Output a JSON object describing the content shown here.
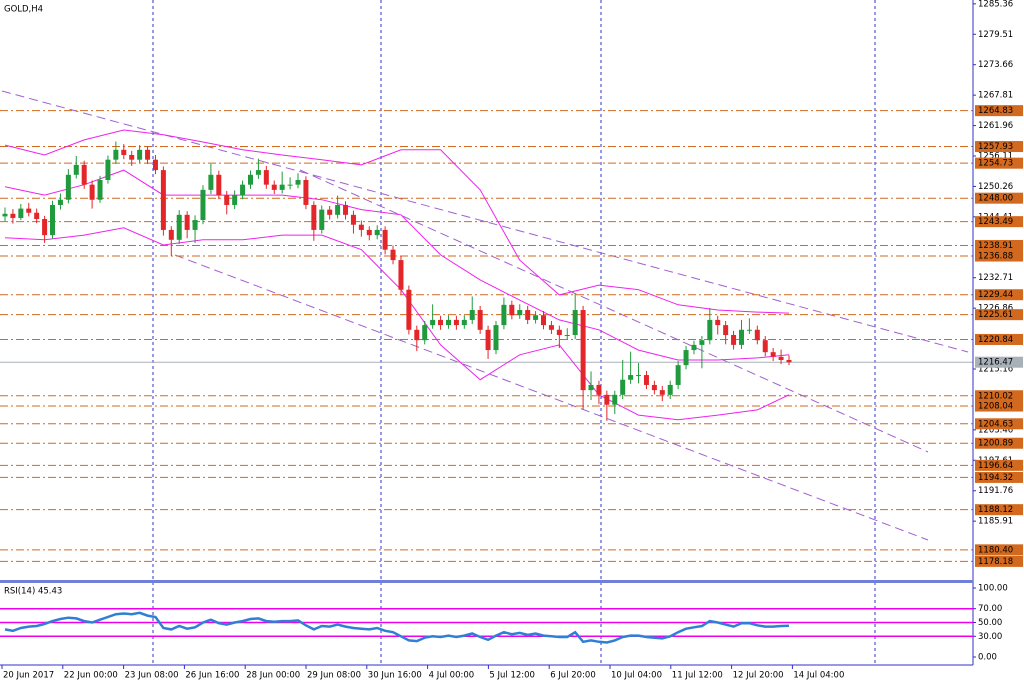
{
  "chart_data": {
    "type": "candlestick",
    "title": "GOLD,H4",
    "up_color": "#1f9a3c",
    "down_color": "#e3262a",
    "level_color": "#d2691e",
    "band_color": "#ee22ee",
    "ylim": [
      1174.6,
      1286.1
    ],
    "yticks": [
      1285.36,
      1279.51,
      1273.66,
      1267.81,
      1261.96,
      1256.11,
      1250.26,
      1244.41,
      1232.71,
      1226.86,
      1215.16,
      1203.46,
      1197.61,
      1191.76,
      1185.91
    ],
    "levels": [
      1264.83,
      1257.93,
      1254.73,
      {
        "value": 1248,
        "label": "1248.00"
      },
      1243.49,
      1238.91,
      1236.88,
      1229.44,
      1225.61,
      1220.84,
      1210.02,
      1208.04,
      1204.63,
      1200.89,
      1196.64,
      1194.32,
      1188.12,
      {
        "value": 1180.4,
        "label": "1180.40"
      },
      1178.18
    ],
    "last_price": 1216.47,
    "x_labels": [
      "20 Jun 2017",
      "22 Jun 00:00",
      "23 Jun 08:00",
      "26 Jun 16:00",
      "28 Jun 00:00",
      "29 Jun 08:00",
      "30 Jun 16:00",
      "4 Jul 00:00",
      "5 Jul 12:00",
      "6 Jul 20:00",
      "10 Jul 04:00",
      "11 Jul 12:00",
      "12 Jul 20:00",
      "14 Jul 04:00"
    ],
    "candles": [
      [
        1244.5,
        1246.2,
        1243.6,
        1245.0
      ],
      [
        1245.0,
        1245.9,
        1243.1,
        1244.2
      ],
      [
        1244.2,
        1246.9,
        1243.8,
        1246.0
      ],
      [
        1246.0,
        1247.1,
        1244.5,
        1245.2
      ],
      [
        1245.2,
        1246.0,
        1243.2,
        1244.0
      ],
      [
        1244.0,
        1244.6,
        1239.4,
        1240.9
      ],
      [
        1240.9,
        1247.5,
        1240.2,
        1246.7
      ],
      [
        1246.7,
        1248.9,
        1245.8,
        1247.7
      ],
      [
        1247.7,
        1253.6,
        1247.0,
        1252.5
      ],
      [
        1252.5,
        1256.1,
        1251.8,
        1254.4
      ],
      [
        1254.4,
        1255.2,
        1249.8,
        1250.6
      ],
      [
        1250.6,
        1251.4,
        1246.0,
        1247.7
      ],
      [
        1247.7,
        1252.3,
        1247.1,
        1251.5
      ],
      [
        1251.5,
        1256.2,
        1250.8,
        1255.4
      ],
      [
        1255.4,
        1258.9,
        1254.6,
        1257.3
      ],
      [
        1257.3,
        1258.4,
        1255.5,
        1256.3
      ],
      [
        1256.3,
        1257.1,
        1254.2,
        1255.4
      ],
      [
        1255.4,
        1258.2,
        1254.8,
        1257.3
      ],
      [
        1257.3,
        1258.0,
        1254.6,
        1255.4
      ],
      [
        1255.4,
        1256.3,
        1252.6,
        1253.4
      ],
      [
        1253.4,
        1254.1,
        1240.8,
        1241.9
      ],
      [
        1241.9,
        1242.6,
        1236.9,
        1240.0
      ],
      [
        1240.0,
        1245.7,
        1239.2,
        1244.8
      ],
      [
        1244.8,
        1245.5,
        1240.3,
        1241.9
      ],
      [
        1241.9,
        1244.7,
        1239.4,
        1243.8
      ],
      [
        1243.8,
        1250.5,
        1243.0,
        1249.6
      ],
      [
        1249.6,
        1254.6,
        1248.8,
        1252.5
      ],
      [
        1252.5,
        1253.3,
        1247.8,
        1248.6
      ],
      [
        1248.6,
        1249.4,
        1244.9,
        1246.7
      ],
      [
        1246.7,
        1249.5,
        1245.9,
        1248.6
      ],
      [
        1248.6,
        1251.4,
        1247.8,
        1250.6
      ],
      [
        1250.6,
        1253.3,
        1249.8,
        1252.5
      ],
      [
        1252.5,
        1255.6,
        1251.7,
        1253.4
      ],
      [
        1253.4,
        1254.2,
        1249.8,
        1250.6
      ],
      [
        1250.6,
        1251.4,
        1248.8,
        1249.6
      ],
      [
        1249.6,
        1253.1,
        1248.9,
        1250.6
      ],
      [
        1250.6,
        1252.0,
        1249.7,
        1250.6
      ],
      [
        1250.6,
        1252.8,
        1249.9,
        1251.5
      ],
      [
        1251.5,
        1252.2,
        1245.9,
        1246.7
      ],
      [
        1246.7,
        1247.4,
        1239.8,
        1241.9
      ],
      [
        1241.9,
        1246.6,
        1241.2,
        1245.8
      ],
      [
        1245.8,
        1246.5,
        1243.9,
        1244.8
      ],
      [
        1244.8,
        1248.5,
        1244.1,
        1246.7
      ],
      [
        1246.7,
        1247.4,
        1243.9,
        1244.8
      ],
      [
        1244.8,
        1245.6,
        1241.2,
        1242.9
      ],
      [
        1242.9,
        1243.7,
        1240.6,
        1241.9
      ],
      [
        1241.9,
        1242.6,
        1239.9,
        1240.9
      ],
      [
        1240.9,
        1242.8,
        1240.1,
        1241.9
      ],
      [
        1241.9,
        1242.6,
        1237.2,
        1238.1
      ],
      [
        1238.1,
        1238.9,
        1235.3,
        1236.1
      ],
      [
        1236.1,
        1236.9,
        1229.5,
        1230.4
      ],
      [
        1230.4,
        1231.2,
        1221.8,
        1222.7
      ],
      [
        1222.7,
        1223.5,
        1218.6,
        1220.7
      ],
      [
        1220.7,
        1224.4,
        1219.9,
        1223.6
      ],
      [
        1223.6,
        1227.6,
        1222.9,
        1224.6
      ],
      [
        1224.6,
        1225.4,
        1222.7,
        1223.6
      ],
      [
        1223.6,
        1225.5,
        1222.9,
        1224.6
      ],
      [
        1224.6,
        1225.4,
        1222.7,
        1223.6
      ],
      [
        1223.6,
        1225.5,
        1222.9,
        1224.6
      ],
      [
        1224.6,
        1229.1,
        1223.8,
        1226.5
      ],
      [
        1226.5,
        1227.3,
        1221.9,
        1222.7
      ],
      [
        1222.7,
        1223.5,
        1217.1,
        1218.8
      ],
      [
        1218.8,
        1224.4,
        1218.0,
        1223.6
      ],
      [
        1223.6,
        1228.9,
        1222.8,
        1227.5
      ],
      [
        1227.5,
        1228.3,
        1224.7,
        1225.5
      ],
      [
        1225.5,
        1227.6,
        1224.8,
        1226.5
      ],
      [
        1226.5,
        1227.3,
        1223.8,
        1224.6
      ],
      [
        1224.6,
        1226.3,
        1223.9,
        1225.5
      ],
      [
        1225.5,
        1226.3,
        1222.8,
        1223.6
      ],
      [
        1223.6,
        1224.4,
        1221.9,
        1222.7
      ],
      [
        1222.7,
        1223.5,
        1219.2,
        1221.7
      ],
      [
        1221.7,
        1223.0,
        1220.9,
        1221.7
      ],
      [
        1221.7,
        1229.6,
        1220.9,
        1226.5
      ],
      [
        1226.5,
        1227.3,
        1207.4,
        1211.1
      ],
      [
        1211.1,
        1214.7,
        1209.2,
        1212.1
      ],
      [
        1212.1,
        1212.9,
        1208.4,
        1210.2
      ],
      [
        1210.2,
        1211.0,
        1205.2,
        1208.3
      ],
      [
        1208.3,
        1211.0,
        1206.5,
        1210.2
      ],
      [
        1210.2,
        1216.9,
        1209.4,
        1213.1
      ],
      [
        1213.1,
        1218.5,
        1212.3,
        1214.0
      ],
      [
        1214.0,
        1216.3,
        1212.4,
        1214.0
      ],
      [
        1214.0,
        1214.8,
        1211.3,
        1212.1
      ],
      [
        1212.1,
        1212.9,
        1210.3,
        1211.1
      ],
      [
        1211.1,
        1211.9,
        1209.0,
        1210.2
      ],
      [
        1210.2,
        1212.9,
        1209.4,
        1212.1
      ],
      [
        1212.1,
        1216.7,
        1211.3,
        1215.9
      ],
      [
        1215.9,
        1219.6,
        1215.1,
        1218.8
      ],
      [
        1218.8,
        1220.6,
        1218.0,
        1219.8
      ],
      [
        1219.8,
        1221.5,
        1215.3,
        1220.7
      ],
      [
        1220.7,
        1226.9,
        1219.9,
        1224.6
      ],
      [
        1224.6,
        1225.4,
        1221.8,
        1223.6
      ],
      [
        1223.6,
        1224.4,
        1219.9,
        1221.7
      ],
      [
        1221.7,
        1222.5,
        1218.9,
        1219.8
      ],
      [
        1219.8,
        1224.6,
        1219.0,
        1222.7
      ],
      [
        1222.7,
        1224.9,
        1221.9,
        1222.7
      ],
      [
        1222.7,
        1223.5,
        1219.9,
        1220.7
      ],
      [
        1220.7,
        1221.5,
        1217.6,
        1218.4
      ],
      [
        1218.4,
        1219.2,
        1216.7,
        1217.5
      ],
      [
        1217.5,
        1218.9,
        1216.1,
        1216.9
      ],
      [
        1216.9,
        1217.8,
        1215.9,
        1216.47
      ]
    ],
    "bands": {
      "x": [
        0,
        5,
        10,
        15,
        20,
        25,
        30,
        35,
        40,
        45,
        50,
        55,
        60,
        65,
        70,
        75,
        80,
        85,
        90,
        95,
        99
      ],
      "upper": [
        1258.2,
        1256.3,
        1259.2,
        1261.1,
        1260.2,
        1258.8,
        1257.3,
        1256.3,
        1255.4,
        1254.4,
        1257.3,
        1257.3,
        1249.6,
        1236.1,
        1229.4,
        1231.3,
        1230.4,
        1227.5,
        1226.5,
        1226.1,
        1225.9
      ],
      "middle": [
        1250.2,
        1248.6,
        1250.6,
        1253.4,
        1248.6,
        1248.6,
        1248.6,
        1248.6,
        1247.7,
        1245.8,
        1244.8,
        1237.1,
        1232.3,
        1228.4,
        1224.6,
        1222.7,
        1218.8,
        1216.9,
        1216.9,
        1217.3,
        1217.9
      ],
      "lower": [
        1240.4,
        1240.0,
        1240.9,
        1242.3,
        1239.0,
        1240.0,
        1240.0,
        1240.9,
        1240.9,
        1238.1,
        1230.4,
        1219.8,
        1213.1,
        1217.9,
        1219.8,
        1210.2,
        1206.3,
        1205.4,
        1206.3,
        1207.3,
        1210.2
      ]
    },
    "rsi": {
      "label": "RSI(14) 45.43",
      "color": "#2f7fd6",
      "level_color": "#ee00ee",
      "ylim": [
        0,
        100
      ],
      "yticks": [
        {
          "value": 100,
          "label": "100.00"
        },
        {
          "value": 70,
          "label": "70.00"
        },
        {
          "value": 50,
          "label": "50.00"
        },
        {
          "value": 30,
          "label": "30.00"
        },
        {
          "value": 0,
          "label": "0.00"
        }
      ],
      "levels": [
        70,
        50,
        30
      ],
      "values": [
        40,
        38,
        42,
        44,
        45,
        48,
        52,
        55,
        57,
        56,
        52,
        50,
        54,
        58,
        62,
        63,
        62,
        64,
        60,
        58,
        42,
        40,
        45,
        41,
        43,
        50,
        54,
        49,
        47,
        50,
        52,
        55,
        56,
        52,
        51,
        52,
        52,
        53,
        46,
        40,
        45,
        44,
        47,
        44,
        42,
        41,
        40,
        42,
        38,
        36,
        30,
        24,
        23,
        28,
        30,
        29,
        31,
        29,
        31,
        34,
        29,
        25,
        31,
        36,
        33,
        35,
        32,
        34,
        31,
        30,
        29,
        29,
        36,
        22,
        24,
        22,
        21,
        24,
        29,
        31,
        31,
        29,
        28,
        27,
        30,
        36,
        41,
        43,
        45,
        52,
        50,
        47,
        44,
        49,
        49,
        46,
        44,
        44,
        45,
        45.43
      ]
    }
  }
}
